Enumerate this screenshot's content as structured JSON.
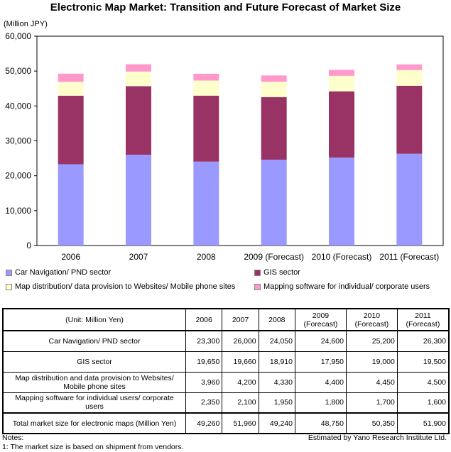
{
  "title": "Electronic Map Market: Transition and Future Forecast of Market Size",
  "chart_data": {
    "type": "bar",
    "stacked": true,
    "title": "Electronic Map Market: Transition and Future Forecast of Market Size",
    "ylabel": "(Million JPY)",
    "ylim": [
      0,
      60000
    ],
    "yticks": [
      "0",
      "10,000",
      "20,000",
      "30,000",
      "40,000",
      "50,000",
      "60,000"
    ],
    "ytick_values": [
      0,
      10000,
      20000,
      30000,
      40000,
      50000,
      60000
    ],
    "categories": [
      "2006",
      "2007",
      "2008",
      "2009 (Forecast)",
      "2010 (Forecast)",
      "2011 (Forecast)"
    ],
    "series": [
      {
        "name": "Car Navigation/ PND sector",
        "color": "#9999ff",
        "values": [
          23300,
          26000,
          24050,
          24600,
          25200,
          26300
        ]
      },
      {
        "name": "GIS sector",
        "color": "#993366",
        "values": [
          19650,
          19660,
          18910,
          17950,
          19000,
          19500
        ]
      },
      {
        "name": "Map distribution/ data provision to Websites/ Mobile phone sites",
        "color": "#ffffcc",
        "values": [
          3960,
          4200,
          4330,
          4400,
          4450,
          4500
        ]
      },
      {
        "name": "Mapping software for individual/ corporate users",
        "color": "#ff99cc",
        "values": [
          2350,
          2100,
          1950,
          1800,
          1700,
          1600
        ]
      }
    ],
    "grid": false,
    "legend": "bottom"
  },
  "table": {
    "unit_header": "(Unit: Million Yen)",
    "years": [
      {
        "year": "2006",
        "sub": ""
      },
      {
        "year": "2007",
        "sub": ""
      },
      {
        "year": "2008",
        "sub": ""
      },
      {
        "year": "2009",
        "sub": "(Forecast)"
      },
      {
        "year": "2010",
        "sub": "(Forecast)"
      },
      {
        "year": "2011",
        "sub": "(Forecast)"
      }
    ],
    "rows": [
      {
        "label": "Car Navigation/ PND sector",
        "values": [
          "23,300",
          "26,000",
          "24,050",
          "24,600",
          "25,200",
          "26,300"
        ]
      },
      {
        "label": "GIS sector",
        "values": [
          "19,650",
          "19,660",
          "18,910",
          "17,950",
          "19,000",
          "19,500"
        ]
      },
      {
        "label": "Map distribution and data provision to Websites/ Mobile phone sites",
        "values": [
          "3,960",
          "4,200",
          "4,330",
          "4,400",
          "4,450",
          "4,500"
        ]
      },
      {
        "label": "Mapping software for individual users/ corporate users",
        "values": [
          "2,350",
          "2,100",
          "1,950",
          "1,800",
          "1,700",
          "1,600"
        ]
      },
      {
        "label": "Total market size for electronic maps (Million Yen)",
        "values": [
          "49,260",
          "51,960",
          "49,240",
          "48,750",
          "50,350",
          "51,900"
        ]
      }
    ]
  },
  "notes": {
    "heading": "Notes:",
    "items": [
      "1: The market size is based on shipment from vendors."
    ]
  },
  "source": "Estimated by Yano Research Institute Ltd."
}
